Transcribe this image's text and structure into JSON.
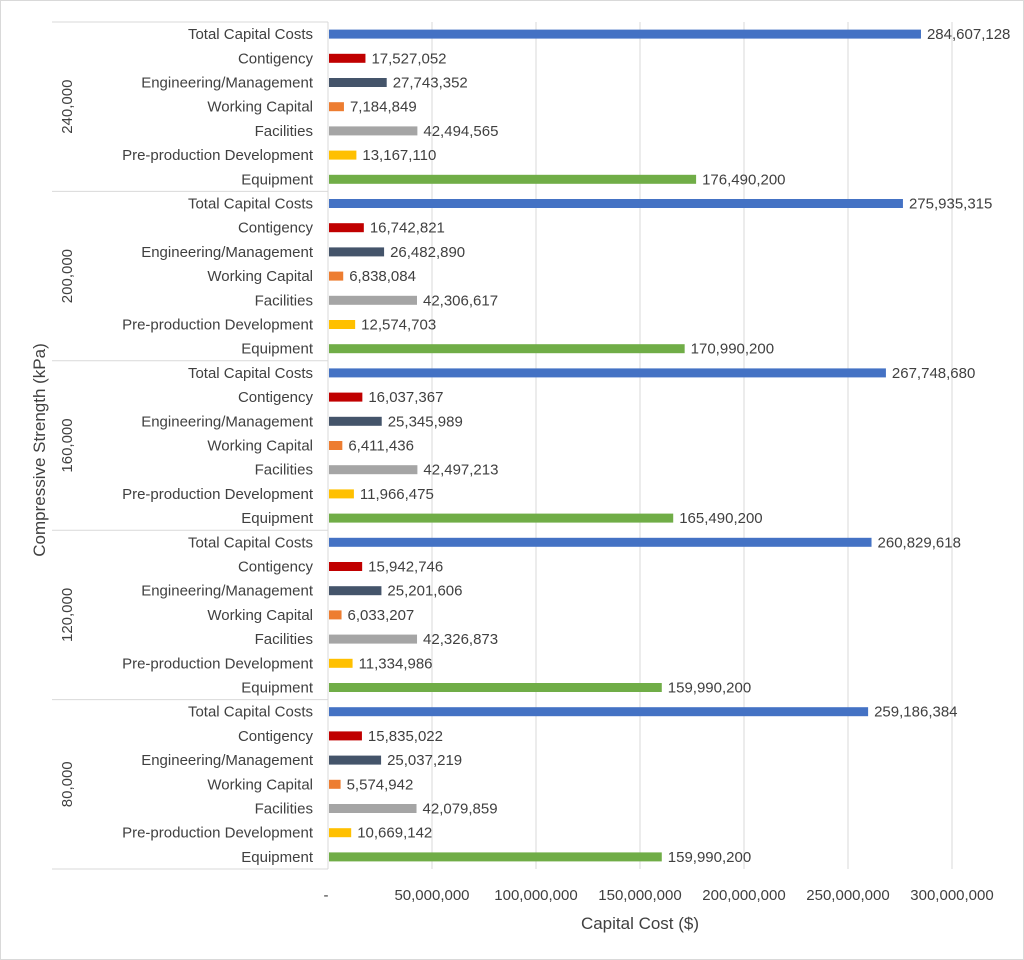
{
  "chart_data": {
    "type": "bar",
    "orientation": "horizontal",
    "xlabel": "Capital Cost ($)",
    "ylabel": "Compressive Strength (kPa)",
    "xlim": [
      0,
      300000000
    ],
    "x_ticks": [
      {
        "value": 0,
        "label": "-"
      },
      {
        "value": 50000000,
        "label": "50,000,000"
      },
      {
        "value": 100000000,
        "label": "100,000,000"
      },
      {
        "value": 150000000,
        "label": "150,000,000"
      },
      {
        "value": 200000000,
        "label": "200,000,000"
      },
      {
        "value": 250000000,
        "label": "250,000,000"
      },
      {
        "value": 300000000,
        "label": "300,000,000"
      }
    ],
    "grid": true,
    "categories_top_to_bottom": [
      "Total Capital Costs",
      "Contigency",
      "Engineering/Management",
      "Working Capital",
      "Facilities",
      "Pre-production Development",
      "Equipment"
    ],
    "series_colors": {
      "Total Capital Costs": "#4472C4",
      "Contigency": "#C00000",
      "Engineering/Management": "#44546A",
      "Working Capital": "#ED7D31",
      "Facilities": "#A5A5A5",
      "Pre-production Development": "#FFC000",
      "Equipment": "#70AD47"
    },
    "groups": [
      {
        "name": "240,000",
        "values": [
          284607128,
          17527052,
          27743352,
          7184849,
          42494565,
          13167110,
          176490200
        ],
        "labels": [
          "284,607,128",
          "17,527,052",
          "27,743,352",
          "7,184,849",
          "42,494,565",
          "13,167,110",
          "176,490,200"
        ]
      },
      {
        "name": "200,000",
        "values": [
          275935315,
          16742821,
          26482890,
          6838084,
          42306617,
          12574703,
          170990200
        ],
        "labels": [
          "275,935,315",
          "16,742,821",
          "26,482,890",
          "6,838,084",
          "42,306,617",
          "12,574,703",
          "170,990,200"
        ]
      },
      {
        "name": "160,000",
        "values": [
          267748680,
          16037367,
          25345989,
          6411436,
          42497213,
          11966475,
          165490200
        ],
        "labels": [
          "267,748,680",
          "16,037,367",
          "25,345,989",
          "6,411,436",
          "42,497,213",
          "11,966,475",
          "165,490,200"
        ]
      },
      {
        "name": "120,000",
        "values": [
          260829618,
          15942746,
          25201606,
          6033207,
          42326873,
          11334986,
          159990200
        ],
        "labels": [
          "260,829,618",
          "15,942,746",
          "25,201,606",
          "6,033,207",
          "42,326,873",
          "11,334,986",
          "159,990,200"
        ]
      },
      {
        "name": "80,000",
        "values": [
          259186384,
          15835022,
          25037219,
          5574942,
          42079859,
          10669142,
          159990200
        ],
        "labels": [
          "259,186,384",
          "15,835,022",
          "25,037,219",
          "5,574,942",
          "42,079,859",
          "10,669,142",
          "159,990,200"
        ]
      }
    ]
  }
}
